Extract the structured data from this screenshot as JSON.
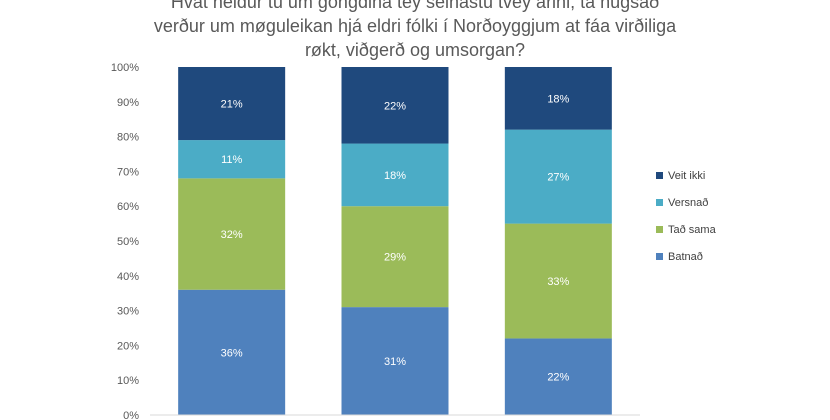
{
  "chart_data": {
    "type": "bar",
    "stacked": true,
    "title_lines": [
      "Hvat heldur tú um gongdina tey seinastu tvey árini, tá hugsað",
      "verður um møguleikan hjá eldri fólki í Norðoyggjum at fáa virðiliga",
      "røkt, viðgerð og umsorgan?"
    ],
    "categories": [
      "",
      "",
      ""
    ],
    "yticks": [
      "0%",
      "10%",
      "20%",
      "30%",
      "40%",
      "50%",
      "60%",
      "70%",
      "80%",
      "90%",
      "100%"
    ],
    "ylim": [
      0,
      100
    ],
    "grid": false,
    "legend_position": "right",
    "series": [
      {
        "name": "Batnað",
        "color": "#4f81bd",
        "values": [
          36,
          31,
          22
        ],
        "labels": [
          "36%",
          "31%",
          "22%"
        ]
      },
      {
        "name": "Tað sama",
        "color": "#9bbb59",
        "values": [
          32,
          29,
          33
        ],
        "labels": [
          "32%",
          "29%",
          "33%"
        ]
      },
      {
        "name": "Versnað",
        "color": "#4bacc6",
        "values": [
          11,
          18,
          27
        ],
        "labels": [
          "11%",
          "18%",
          "27%"
        ]
      },
      {
        "name": "Veit ikki",
        "color": "#1f497d",
        "values": [
          21,
          22,
          18
        ],
        "labels": [
          "21%",
          "22%",
          "18%"
        ]
      }
    ]
  }
}
